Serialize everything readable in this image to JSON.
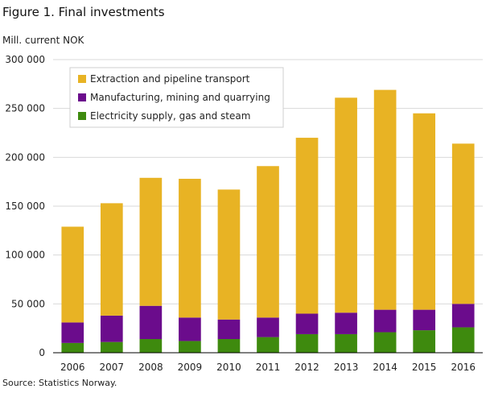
{
  "figure": {
    "title": "Figure 1. Final investments",
    "source": "Source: Statistics Norway."
  },
  "chart_data": {
    "type": "bar",
    "stacked": true,
    "title": "Figure 1. Final investments",
    "ylabel": "Mill. current NOK",
    "xlabel": "",
    "ylim": [
      0,
      300000
    ],
    "yticks": [
      0,
      50000,
      100000,
      150000,
      200000,
      250000,
      300000
    ],
    "ytick_labels": [
      "0",
      "50 000",
      "100 000",
      "150 000",
      "200 000",
      "250 000",
      "300 000"
    ],
    "grid": "horizontal",
    "legend_position": "top-left",
    "categories": [
      "2006",
      "2007",
      "2008",
      "2009",
      "2010",
      "2011",
      "2012",
      "2013",
      "2014",
      "2015",
      "2016"
    ],
    "series": [
      {
        "name": "Electricity supply, gas and steam",
        "color": "#3e8a0e",
        "values": [
          10000,
          11000,
          14000,
          12000,
          14000,
          16000,
          19000,
          19000,
          21000,
          23000,
          26000
        ]
      },
      {
        "name": "Manufacturing, mining and quarrying",
        "color": "#6b0c8c",
        "values": [
          21000,
          27000,
          34000,
          24000,
          20000,
          20000,
          21000,
          22000,
          23000,
          21000,
          24000
        ]
      },
      {
        "name": "Extraction and pipeline transport",
        "color": "#e8b324",
        "values": [
          98000,
          115000,
          131000,
          142000,
          133000,
          155000,
          180000,
          220000,
          225000,
          201000,
          164000
        ]
      }
    ],
    "legend_order": [
      2,
      1,
      0
    ]
  }
}
